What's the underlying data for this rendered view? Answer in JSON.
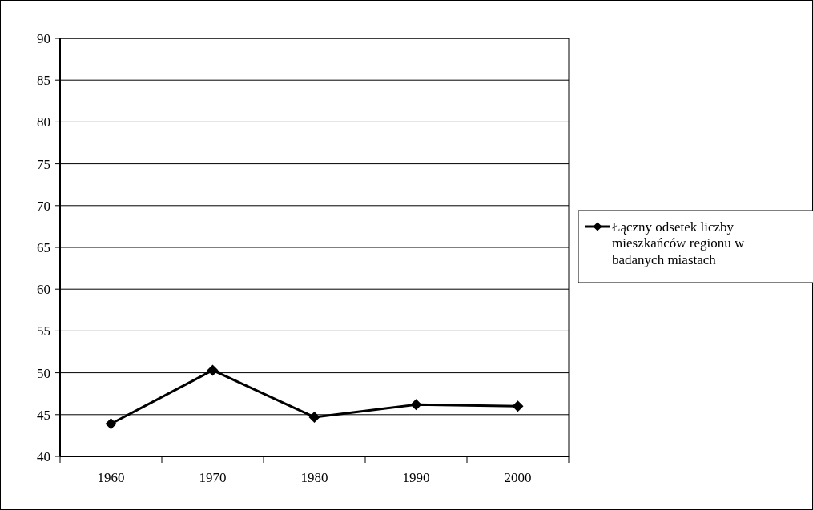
{
  "chart_data": {
    "type": "line",
    "categories": [
      "1960",
      "1970",
      "1980",
      "1990",
      "2000"
    ],
    "series": [
      {
        "name": "Łączny odsetek liczby mieszkańców regionu w badanych miastach",
        "color": "#000000",
        "values": [
          43.9,
          50.3,
          44.7,
          46.2,
          46.0
        ]
      }
    ],
    "ylim": [
      40,
      90
    ],
    "yticks": [
      40,
      45,
      50,
      55,
      60,
      65,
      70,
      75,
      80,
      85,
      90
    ],
    "grid": "y",
    "legend": "right",
    "marker": "diamond",
    "line_style": "solid"
  }
}
